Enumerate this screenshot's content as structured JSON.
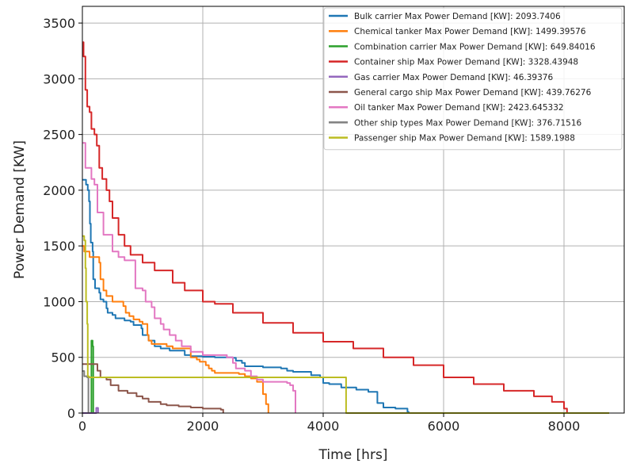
{
  "chart_data": {
    "type": "line",
    "xlabel": "Time [hrs]",
    "ylabel": "Power Demand [KW]",
    "xlim": [
      0,
      9000
    ],
    "ylim": [
      0,
      3650
    ],
    "xticks": [
      0,
      2000,
      4000,
      6000,
      8000
    ],
    "yticks": [
      0,
      500,
      1000,
      1500,
      2000,
      2500,
      3000,
      3500
    ],
    "grid": true,
    "legend_position": "top-right",
    "series": [
      {
        "name": "Bulk carrier Max Power Demand [KW]: 2093.7406",
        "color": "#1f77b4",
        "points": [
          [
            0,
            2094
          ],
          [
            60,
            2050
          ],
          [
            90,
            2000
          ],
          [
            110,
            1900
          ],
          [
            125,
            1700
          ],
          [
            140,
            1530
          ],
          [
            170,
            1450
          ],
          [
            180,
            1200
          ],
          [
            210,
            1120
          ],
          [
            280,
            1080
          ],
          [
            300,
            1020
          ],
          [
            350,
            1000
          ],
          [
            400,
            940
          ],
          [
            420,
            900
          ],
          [
            500,
            880
          ],
          [
            550,
            850
          ],
          [
            700,
            830
          ],
          [
            800,
            820
          ],
          [
            850,
            790
          ],
          [
            980,
            760
          ],
          [
            1000,
            700
          ],
          [
            1100,
            650
          ],
          [
            1200,
            600
          ],
          [
            1300,
            580
          ],
          [
            1450,
            560
          ],
          [
            1700,
            520
          ],
          [
            1800,
            510
          ],
          [
            2000,
            505
          ],
          [
            2200,
            500
          ],
          [
            2500,
            495
          ],
          [
            2550,
            470
          ],
          [
            2650,
            450
          ],
          [
            2700,
            420
          ],
          [
            3000,
            410
          ],
          [
            3300,
            400
          ],
          [
            3400,
            380
          ],
          [
            3500,
            370
          ],
          [
            3800,
            340
          ],
          [
            3950,
            320
          ],
          [
            4000,
            270
          ],
          [
            4100,
            260
          ],
          [
            4300,
            230
          ],
          [
            4550,
            210
          ],
          [
            4750,
            190
          ],
          [
            4900,
            90
          ],
          [
            5000,
            50
          ],
          [
            5200,
            40
          ],
          [
            5400,
            10
          ],
          [
            5420,
            0
          ]
        ]
      },
      {
        "name": "Chemical tanker Max Power Demand [KW]: 1499.39576",
        "color": "#ff7f0e",
        "points": [
          [
            0,
            1499
          ],
          [
            30,
            1450
          ],
          [
            120,
            1400
          ],
          [
            280,
            1350
          ],
          [
            300,
            1200
          ],
          [
            350,
            1100
          ],
          [
            400,
            1050
          ],
          [
            500,
            1000
          ],
          [
            680,
            960
          ],
          [
            720,
            900
          ],
          [
            780,
            870
          ],
          [
            850,
            840
          ],
          [
            950,
            820
          ],
          [
            1000,
            800
          ],
          [
            1080,
            700
          ],
          [
            1100,
            650
          ],
          [
            1150,
            620
          ],
          [
            1400,
            600
          ],
          [
            1500,
            580
          ],
          [
            1800,
            500
          ],
          [
            1900,
            480
          ],
          [
            1950,
            460
          ],
          [
            2050,
            430
          ],
          [
            2100,
            400
          ],
          [
            2150,
            380
          ],
          [
            2200,
            360
          ],
          [
            2600,
            350
          ],
          [
            2700,
            330
          ],
          [
            2800,
            310
          ],
          [
            2900,
            280
          ],
          [
            3000,
            170
          ],
          [
            3050,
            80
          ],
          [
            3090,
            0
          ]
        ]
      },
      {
        "name": "Combination carrier Max Power Demand [KW]: 649.84016",
        "color": "#2ca02c",
        "points": [
          [
            0,
            0
          ],
          [
            150,
            0
          ],
          [
            150,
            650
          ],
          [
            170,
            600
          ],
          [
            180,
            0
          ]
        ]
      },
      {
        "name": "Container ship Max Power Demand [KW]: 3328.43948",
        "color": "#d62728",
        "points": [
          [
            0,
            3328
          ],
          [
            20,
            3200
          ],
          [
            50,
            2900
          ],
          [
            80,
            2750
          ],
          [
            120,
            2700
          ],
          [
            150,
            2550
          ],
          [
            200,
            2500
          ],
          [
            240,
            2400
          ],
          [
            280,
            2200
          ],
          [
            330,
            2100
          ],
          [
            400,
            2000
          ],
          [
            450,
            1900
          ],
          [
            500,
            1750
          ],
          [
            600,
            1600
          ],
          [
            700,
            1500
          ],
          [
            800,
            1420
          ],
          [
            1000,
            1350
          ],
          [
            1200,
            1280
          ],
          [
            1500,
            1170
          ],
          [
            1700,
            1100
          ],
          [
            2000,
            1000
          ],
          [
            2200,
            980
          ],
          [
            2500,
            900
          ],
          [
            3000,
            810
          ],
          [
            3500,
            720
          ],
          [
            4000,
            640
          ],
          [
            4500,
            580
          ],
          [
            5000,
            500
          ],
          [
            5500,
            430
          ],
          [
            6000,
            320
          ],
          [
            6500,
            260
          ],
          [
            7000,
            200
          ],
          [
            7500,
            150
          ],
          [
            7800,
            100
          ],
          [
            8000,
            40
          ],
          [
            8050,
            0
          ]
        ]
      },
      {
        "name": "Gas carrier Max Power Demand [KW]: 46.39376",
        "color": "#9467bd",
        "points": [
          [
            0,
            0
          ],
          [
            230,
            0
          ],
          [
            230,
            46
          ],
          [
            260,
            46
          ],
          [
            260,
            0
          ]
        ]
      },
      {
        "name": "General cargo ship Max Power Demand [KW]: 439.76276",
        "color": "#8c564b",
        "points": [
          [
            0,
            440
          ],
          [
            250,
            380
          ],
          [
            300,
            320
          ],
          [
            400,
            300
          ],
          [
            470,
            250
          ],
          [
            600,
            200
          ],
          [
            750,
            180
          ],
          [
            900,
            150
          ],
          [
            1000,
            130
          ],
          [
            1100,
            100
          ],
          [
            1300,
            80
          ],
          [
            1400,
            70
          ],
          [
            1600,
            60
          ],
          [
            1800,
            50
          ],
          [
            2000,
            40
          ],
          [
            2300,
            30
          ],
          [
            2340,
            0
          ]
        ]
      },
      {
        "name": "Oil tanker Max Power Demand [KW]: 2423.645332",
        "color": "#e377c2",
        "points": [
          [
            0,
            2424
          ],
          [
            50,
            2200
          ],
          [
            150,
            2100
          ],
          [
            200,
            2050
          ],
          [
            250,
            1800
          ],
          [
            350,
            1600
          ],
          [
            500,
            1450
          ],
          [
            600,
            1400
          ],
          [
            700,
            1370
          ],
          [
            880,
            1360
          ],
          [
            880,
            1120
          ],
          [
            1000,
            1100
          ],
          [
            1050,
            1000
          ],
          [
            1150,
            950
          ],
          [
            1200,
            850
          ],
          [
            1300,
            800
          ],
          [
            1350,
            750
          ],
          [
            1450,
            700
          ],
          [
            1550,
            650
          ],
          [
            1650,
            600
          ],
          [
            1800,
            550
          ],
          [
            2000,
            520
          ],
          [
            2400,
            500
          ],
          [
            2500,
            450
          ],
          [
            2550,
            400
          ],
          [
            2700,
            380
          ],
          [
            2800,
            330
          ],
          [
            2900,
            300
          ],
          [
            3000,
            280
          ],
          [
            3400,
            270
          ],
          [
            3450,
            250
          ],
          [
            3500,
            200
          ],
          [
            3540,
            0
          ]
        ]
      },
      {
        "name": "Other ship types Max Power Demand [KW]: 376.71516",
        "color": "#7f7f7f",
        "points": [
          [
            0,
            377
          ],
          [
            30,
            330
          ],
          [
            80,
            320
          ],
          [
            100,
            0
          ]
        ]
      },
      {
        "name": "Passenger ship Max Power Demand [KW]: 1589.1988",
        "color": "#bcbd22",
        "points": [
          [
            0,
            1589
          ],
          [
            30,
            1550
          ],
          [
            50,
            1300
          ],
          [
            60,
            1000
          ],
          [
            80,
            800
          ],
          [
            90,
            330
          ],
          [
            110,
            320
          ],
          [
            4380,
            320
          ],
          [
            4380,
            0
          ],
          [
            8750,
            0
          ]
        ]
      }
    ]
  }
}
